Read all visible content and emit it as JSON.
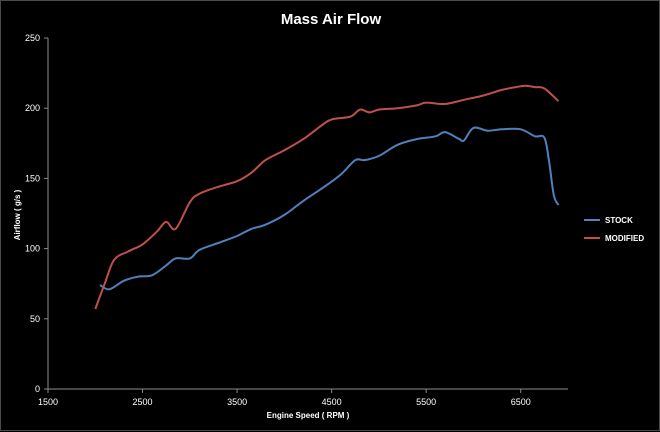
{
  "chart_data": {
    "type": "line",
    "title": "Mass Air Flow",
    "xlabel": "Engine Speed ( RPM )",
    "ylabel": "Airflow ( g/s )",
    "xlim": [
      1500,
      7000
    ],
    "ylim": [
      0,
      250
    ],
    "x_ticks": [
      1500,
      2500,
      3500,
      4500,
      5500,
      6500
    ],
    "y_ticks": [
      0,
      50,
      100,
      150,
      200,
      250
    ],
    "grid": false,
    "legend_position": "right",
    "series": [
      {
        "name": "STOCK",
        "color": "#4f81bd",
        "x": [
          2050,
          2150,
          2300,
          2450,
          2600,
          2750,
          2850,
          3000,
          3100,
          3300,
          3500,
          3650,
          3800,
          4000,
          4200,
          4400,
          4600,
          4750,
          4850,
          5000,
          5200,
          5400,
          5600,
          5700,
          5850,
          5900,
          6000,
          6150,
          6300,
          6500,
          6650,
          6750,
          6800,
          6850,
          6900
        ],
        "y": [
          74,
          71,
          77,
          80,
          81,
          88,
          93,
          93,
          99,
          104,
          109,
          114,
          117,
          124,
          134,
          143,
          153,
          163,
          163,
          166,
          174,
          178,
          180,
          183,
          178,
          177,
          186,
          184,
          185,
          185,
          180,
          179,
          162,
          138,
          131
        ]
      },
      {
        "name": "MODIFIED",
        "color": "#c0504d",
        "x": [
          2000,
          2100,
          2200,
          2350,
          2500,
          2650,
          2750,
          2850,
          3000,
          3100,
          3300,
          3500,
          3650,
          3800,
          4000,
          4200,
          4400,
          4500,
          4700,
          4800,
          4900,
          5000,
          5200,
          5400,
          5500,
          5700,
          5900,
          6100,
          6300,
          6450,
          6550,
          6650,
          6750,
          6900
        ],
        "y": [
          57,
          75,
          92,
          98,
          103,
          112,
          119,
          114,
          133,
          139,
          144,
          148,
          154,
          163,
          170,
          178,
          188,
          192,
          194,
          199,
          197,
          199,
          200,
          202,
          204,
          203,
          206,
          209,
          213,
          215,
          216,
          215,
          214,
          205
        ]
      }
    ]
  }
}
